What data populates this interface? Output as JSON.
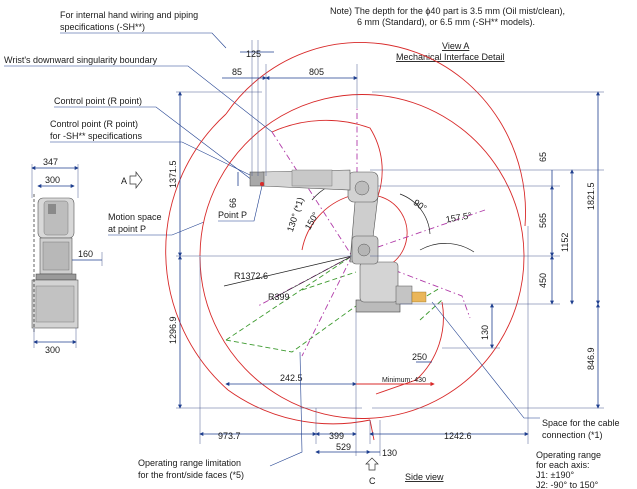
{
  "callouts": {
    "hand_wiring": "For internal hand wiring and piping",
    "hand_wiring_2": "specifications (-SH**)",
    "wrist_singularity": "Wrist's downward singularity boundary",
    "control_point": "Control point (R point)",
    "control_point_sh": "Control point (R point)",
    "control_point_sh_2": "for -SH** specifications",
    "motion_space": "Motion space",
    "motion_space_2": "at point P",
    "point_p": "Point P",
    "view_a_marker": "A",
    "view_c_marker": "C",
    "cable_space": "Space for the cable",
    "cable_space_2": "connection (*1)",
    "op_limit": "Operating range limitation",
    "op_limit_2": "for the front/side faces (*5)",
    "op_range": "Operating range",
    "op_range_2": "for each axis:",
    "op_range_j1": "J1: ±190°",
    "op_range_j2": "J2: -90° to 150°",
    "side_view": "Side view",
    "minimum": "Minimum: 430"
  },
  "note": {
    "line1": "Note) The depth for the  ϕ40 part is 3.5 mm (Oil mist/clean),",
    "line2": "6 mm (Standard), or 6.5 mm (-SH** models).",
    "view_a": "View A",
    "view_a_sub": "Mechanical Interface Detail"
  },
  "dimensions": {
    "d125": "125",
    "d85": "85",
    "d805": "805",
    "d347": "347",
    "d300_top": "300",
    "d300_bot": "300",
    "d160": "160",
    "d1371_5": "1371.5",
    "d66": "66",
    "d1296_9": "1296.9",
    "r1372_6": "R1372.6",
    "r399": "R399",
    "d242_5": "242.5",
    "d250": "250",
    "d973_7": "973.7",
    "d399": "399",
    "d529": "529",
    "d130_h": "130",
    "d1242_6": "1242.6",
    "d65": "65",
    "d565": "565",
    "d1152": "1152",
    "d1821_5": "1821.5",
    "d450": "450",
    "d130_v": "130",
    "d846_9": "846.9",
    "a130_1": "130° (*1)",
    "a150": "150°",
    "a90": "90°",
    "a157_5": "157.5°"
  },
  "colors": {
    "dimension": "#1f3f8f",
    "motion_range": "#d82a2a",
    "singularity": "#b03aa8",
    "limitation": "#3c9a2e"
  }
}
